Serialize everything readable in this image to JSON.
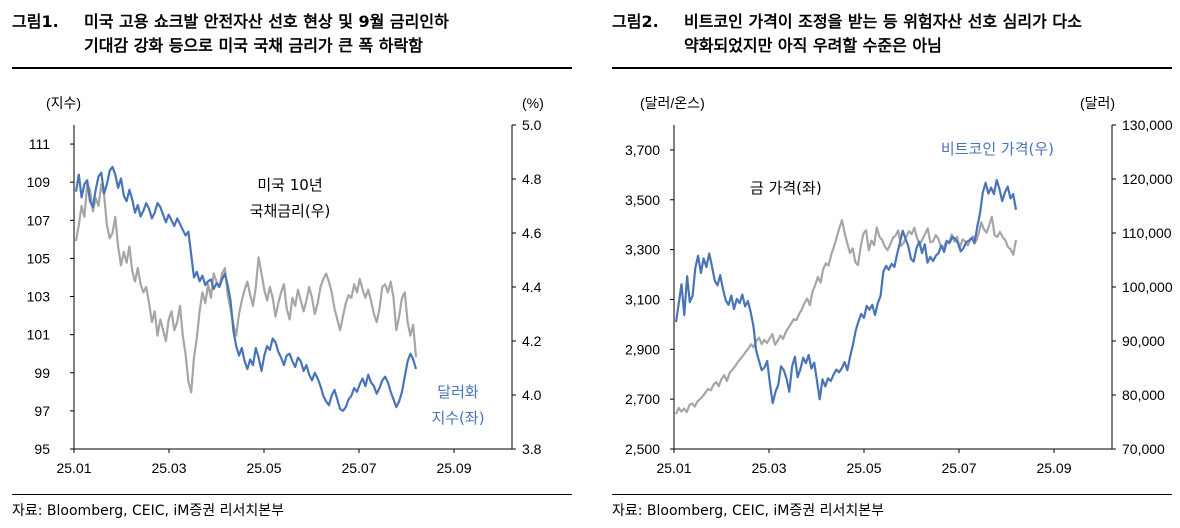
{
  "chart_data": [
    {
      "type": "line",
      "figure_label": "그림1.",
      "title_line1": "미국 고용 쇼크발 안전자산 선호 현상 및 9월 금리인하",
      "title_line2": "기대감 강화 등으로 미국 국채 금리가 큰 폭 하락함",
      "left_unit": "(지수)",
      "right_unit": "(%)",
      "x_ticks": [
        "25.01",
        "25.03",
        "25.05",
        "25.07",
        "25.09"
      ],
      "left_ylim": [
        95,
        112
      ],
      "right_ylim": [
        3.8,
        5.0
      ],
      "left_ticks": [
        "111",
        "109",
        "107",
        "105",
        "103",
        "101",
        "99",
        "97",
        "95"
      ],
      "right_ticks": [
        "5.0",
        "4.8",
        "4.6",
        "4.4",
        "4.2",
        "4.0",
        "3.8"
      ],
      "source": "자료: Bloomberg, CEIC, iM증권 리서치본부",
      "series": [
        {
          "name": "달러화 지수(좌)",
          "label_line1": "달러화",
          "label_line2": "지수(좌)",
          "axis": "left",
          "color": "#4a74b8",
          "values": [
            108.5,
            109.4,
            108.2,
            108.9,
            109.1,
            108.0,
            107.7,
            108.6,
            109.3,
            109.5,
            108.4,
            108.9,
            109.6,
            109.8,
            109.4,
            108.7,
            109.2,
            108.3,
            108.0,
            108.6,
            108.1,
            107.4,
            107.8,
            107.2,
            107.5,
            107.9,
            107.6,
            107.1,
            107.4,
            107.9,
            107.7,
            107.3,
            106.9,
            107.3,
            107.0,
            106.7,
            107.1,
            106.8,
            106.5,
            106.2,
            106.4,
            105.2,
            104.0,
            104.3,
            103.8,
            104.1,
            103.6,
            103.8,
            103.9,
            103.4,
            103.7,
            103.5,
            103.9,
            104.2,
            103.6,
            102.8,
            101.2,
            100.4,
            99.9,
            100.3,
            99.6,
            99.2,
            99.7,
            99.4,
            100.3,
            99.8,
            99.1,
            99.9,
            100.4,
            100.2,
            100.8,
            100.6,
            100.1,
            99.8,
            99.4,
            99.9,
            100.0,
            99.6,
            99.3,
            99.8,
            99.6,
            99.1,
            99.4,
            98.9,
            98.6,
            99.0,
            98.7,
            98.3,
            97.8,
            97.5,
            97.3,
            97.8,
            98.1,
            97.6,
            97.1,
            97.0,
            97.2,
            97.6,
            97.8,
            98.2,
            98.0,
            98.4,
            98.7,
            98.3,
            98.9,
            98.5,
            98.3,
            97.9,
            98.2,
            98.6,
            98.8,
            98.5,
            98.0,
            97.6,
            97.2,
            97.5,
            98.0,
            98.8,
            99.6,
            100.0,
            99.7,
            99.2
          ]
        },
        {
          "name": "미국 10년 국채금리(우)",
          "label_line1": "미국 10년",
          "label_line2": "국채금리(우)",
          "axis": "right",
          "color": "#a6a6a6",
          "values": [
            4.57,
            4.63,
            4.7,
            4.66,
            4.78,
            4.76,
            4.68,
            4.73,
            4.7,
            4.78,
            4.74,
            4.63,
            4.58,
            4.6,
            4.66,
            4.55,
            4.48,
            4.53,
            4.49,
            4.55,
            4.46,
            4.42,
            4.47,
            4.41,
            4.38,
            4.4,
            4.34,
            4.27,
            4.31,
            4.22,
            4.28,
            4.24,
            4.2,
            4.28,
            4.31,
            4.24,
            4.27,
            4.33,
            4.22,
            4.15,
            4.05,
            4.01,
            4.14,
            4.21,
            4.31,
            4.38,
            4.34,
            4.41,
            4.36,
            4.45,
            4.42,
            4.4,
            4.45,
            4.47,
            4.37,
            4.32,
            4.26,
            4.22,
            4.3,
            4.35,
            4.39,
            4.42,
            4.37,
            4.33,
            4.4,
            4.51,
            4.45,
            4.39,
            4.35,
            4.4,
            4.36,
            4.29,
            4.34,
            4.38,
            4.41,
            4.32,
            4.28,
            4.36,
            4.33,
            4.39,
            4.35,
            4.31,
            4.35,
            4.4,
            4.36,
            4.3,
            4.34,
            4.4,
            4.43,
            4.45,
            4.42,
            4.38,
            4.32,
            4.28,
            4.24,
            4.29,
            4.34,
            4.37,
            4.36,
            4.41,
            4.38,
            4.43,
            4.39,
            4.36,
            4.39,
            4.35,
            4.3,
            4.27,
            4.32,
            4.4,
            4.41,
            4.38,
            4.42,
            4.36,
            4.24,
            4.29,
            4.36,
            4.38,
            4.27,
            4.22,
            4.26,
            4.14
          ]
        }
      ],
      "annotations": []
    },
    {
      "type": "line",
      "figure_label": "그림2.",
      "title_line1": "비트코인 가격이 조정을 받는 등 위험자산 선호 심리가 다소",
      "title_line2": "약화되었지만 아직 우려할 수준은 아님",
      "left_unit": "(달러/온스)",
      "right_unit": "(달러)",
      "x_ticks": [
        "25.01",
        "25.03",
        "25.05",
        "25.07",
        "25.09"
      ],
      "left_ylim": [
        2500,
        3800
      ],
      "right_ylim": [
        70000,
        130000
      ],
      "left_ticks": [
        "3,700",
        "3,500",
        "3,300",
        "3,100",
        "2,900",
        "2,700",
        "2,500"
      ],
      "right_ticks": [
        "130,000",
        "120,000",
        "110,000",
        "100,000",
        "90,000",
        "80,000",
        "70,000"
      ],
      "source": "자료: Bloomberg, CEIC, iM증권 리서치본부",
      "series": [
        {
          "name": "비트코인 가격(우)",
          "label_line1": "비트코인 가격(우)",
          "label_line2": "",
          "axis": "right",
          "color": "#4a74b8",
          "values": [
            93500,
            97000,
            100500,
            94800,
            102000,
            97200,
            98400,
            103500,
            105800,
            102600,
            105300,
            103700,
            106200,
            103900,
            101200,
            100300,
            102200,
            99600,
            97500,
            96700,
            98400,
            95900,
            97800,
            97000,
            98600,
            96400,
            97400,
            95400,
            92800,
            88200,
            86400,
            84600,
            85100,
            86300,
            82000,
            78500,
            80600,
            81900,
            85300,
            84600,
            83000,
            80600,
            85300,
            87100,
            83300,
            84800,
            86900,
            85900,
            87400,
            84900,
            86000,
            82600,
            79200,
            82900,
            81600,
            83100,
            82600,
            83800,
            84700,
            84200,
            85000,
            86100,
            84600,
            87100,
            89300,
            91900,
            93600,
            95000,
            94300,
            96500,
            95800,
            96700,
            94800,
            97000,
            98400,
            102800,
            103900,
            103200,
            104300,
            103700,
            106100,
            108200,
            110400,
            109000,
            107600,
            105200,
            104700,
            107200,
            108400,
            106300,
            107900,
            104500,
            105600,
            104800,
            105800,
            106300,
            107700,
            106500,
            108500,
            108200,
            109300,
            108900,
            108100,
            106600,
            107200,
            108300,
            108600,
            109100,
            108100,
            111200,
            113700,
            117500,
            119300,
            117300,
            118400,
            117200,
            119800,
            118200,
            115900,
            117500,
            118600,
            116400,
            117200,
            114300
          ]
        },
        {
          "name": "금 가격(좌)",
          "label_line1": "금 가격(좌)",
          "label_line2": "",
          "axis": "left",
          "color": "#a6a6a6",
          "values": [
            2640,
            2665,
            2650,
            2662,
            2648,
            2676,
            2683,
            2670,
            2691,
            2700,
            2712,
            2726,
            2741,
            2735,
            2758,
            2769,
            2752,
            2781,
            2796,
            2773,
            2804,
            2818,
            2831,
            2847,
            2861,
            2874,
            2889,
            2903,
            2920,
            2908,
            2934,
            2947,
            2921,
            2938,
            2925,
            2944,
            2961,
            2918,
            2935,
            2955,
            2942,
            2970,
            2986,
            3004,
            3021,
            3017,
            3042,
            3060,
            3086,
            3104,
            3077,
            3131,
            3158,
            3190,
            3168,
            3222,
            3245,
            3236,
            3281,
            3312,
            3348,
            3386,
            3418,
            3366,
            3324,
            3287,
            3305,
            3249,
            3238,
            3312,
            3364,
            3378,
            3297,
            3336,
            3318,
            3389,
            3352,
            3339,
            3312,
            3298,
            3320,
            3347,
            3356,
            3377,
            3314,
            3327,
            3351,
            3374,
            3362,
            3388,
            3348,
            3321,
            3340,
            3362,
            3385,
            3330,
            3332,
            3358,
            3344,
            3309,
            3307,
            3336,
            3325,
            3361,
            3332,
            3351,
            3305,
            3341,
            3334,
            3316,
            3340,
            3353,
            3332,
            3362,
            3410,
            3382,
            3368,
            3398,
            3432,
            3358,
            3351,
            3371,
            3351,
            3338,
            3310,
            3302,
            3279,
            3339
          ]
        }
      ],
      "annotations": [
        "금 가격(좌)"
      ]
    }
  ]
}
